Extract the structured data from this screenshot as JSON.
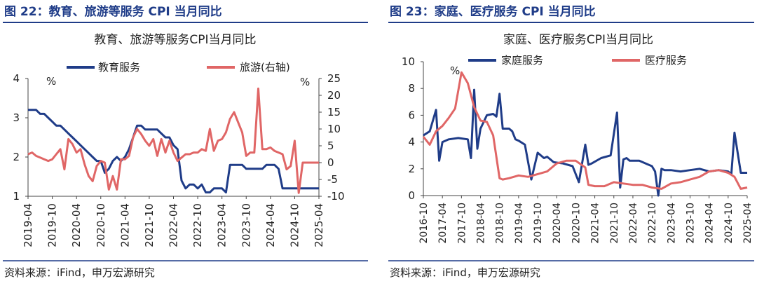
{
  "panels": [
    {
      "figure_title": "图 22：教育、旅游等服务 CPI 当月同比",
      "source": "资料来源：iFind，申万宏源研究"
    },
    {
      "figure_title": "图 23：家庭、医疗服务 CPI 当月同比",
      "source": "资料来源：iFind，申万宏源研究"
    }
  ],
  "colors": {
    "navy": "#1f3c88",
    "salmon": "#e06666",
    "header_rule": "#1f3c88"
  },
  "chart_data": [
    {
      "type": "line",
      "title": "教育、旅游等服务CPI当月同比",
      "left_unit": "%",
      "right_unit": "%",
      "x_start": "2019-04",
      "x_end": "2025-04",
      "xticks": [
        "2019-04",
        "2019-10",
        "2020-04",
        "2020-10",
        "2021-04",
        "2021-10",
        "2022-04",
        "2022-10",
        "2023-04",
        "2023-10",
        "2024-04",
        "2024-10",
        "2025-04"
      ],
      "ylim": [
        1,
        4
      ],
      "yticks": [
        1,
        2,
        3,
        4
      ],
      "y2lim": [
        -10,
        25
      ],
      "y2ticks": [
        -10,
        -5,
        0,
        5,
        10,
        15,
        20,
        25
      ],
      "legend": "top",
      "series": [
        {
          "name": "教育服务",
          "axis": "left",
          "color": "#1f3c88",
          "x": [
            "2019-04",
            "2019-05",
            "2019-06",
            "2019-07",
            "2019-08",
            "2019-09",
            "2019-10",
            "2019-11",
            "2019-12",
            "2020-01",
            "2020-02",
            "2020-03",
            "2020-04",
            "2020-05",
            "2020-06",
            "2020-07",
            "2020-08",
            "2020-09",
            "2020-10",
            "2020-11",
            "2020-12",
            "2021-01",
            "2021-02",
            "2021-03",
            "2021-04",
            "2021-05",
            "2021-06",
            "2021-07",
            "2021-08",
            "2021-09",
            "2021-10",
            "2021-11",
            "2021-12",
            "2022-01",
            "2022-02",
            "2022-03",
            "2022-04",
            "2022-05",
            "2022-06",
            "2022-07",
            "2022-08",
            "2022-09",
            "2022-10",
            "2022-11",
            "2022-12",
            "2023-01",
            "2023-02",
            "2023-03",
            "2023-04",
            "2023-05",
            "2023-06",
            "2023-07",
            "2023-08",
            "2023-09",
            "2023-10",
            "2023-11",
            "2023-12",
            "2024-01",
            "2024-02",
            "2024-03",
            "2024-04",
            "2024-05",
            "2024-06",
            "2024-07",
            "2024-08",
            "2024-09",
            "2024-10",
            "2024-11",
            "2024-12",
            "2025-01",
            "2025-02",
            "2025-03",
            "2025-04"
          ],
          "values": [
            3.2,
            3.2,
            3.2,
            3.1,
            3.1,
            3.0,
            2.9,
            2.8,
            2.8,
            2.7,
            2.6,
            2.5,
            2.4,
            2.3,
            2.2,
            2.1,
            2.0,
            1.9,
            1.9,
            1.6,
            1.7,
            1.9,
            2.0,
            1.9,
            2.0,
            2.2,
            2.5,
            2.8,
            2.8,
            2.7,
            2.7,
            2.7,
            2.7,
            2.6,
            2.5,
            2.5,
            2.3,
            2.2,
            1.4,
            1.2,
            1.3,
            1.3,
            1.2,
            1.3,
            1.1,
            1.1,
            1.2,
            1.2,
            1.2,
            1.1,
            1.8,
            1.8,
            1.8,
            1.8,
            1.7,
            1.7,
            1.7,
            1.7,
            1.7,
            1.8,
            1.8,
            1.8,
            1.7,
            1.2,
            1.2,
            1.2,
            1.2,
            1.2,
            1.2,
            1.2,
            1.2,
            1.2,
            1.2
          ]
        },
        {
          "name": "旅游(右轴)",
          "axis": "right",
          "color": "#e06666",
          "x": [
            "2019-04",
            "2019-05",
            "2019-06",
            "2019-07",
            "2019-08",
            "2019-09",
            "2019-10",
            "2019-11",
            "2019-12",
            "2020-01",
            "2020-02",
            "2020-03",
            "2020-04",
            "2020-05",
            "2020-06",
            "2020-07",
            "2020-08",
            "2020-09",
            "2020-10",
            "2020-11",
            "2020-12",
            "2021-01",
            "2021-02",
            "2021-03",
            "2021-04",
            "2021-05",
            "2021-06",
            "2021-07",
            "2021-08",
            "2021-09",
            "2021-10",
            "2021-11",
            "2021-12",
            "2022-01",
            "2022-02",
            "2022-03",
            "2022-04",
            "2022-05",
            "2022-06",
            "2022-07",
            "2022-08",
            "2022-09",
            "2022-10",
            "2022-11",
            "2022-12",
            "2023-01",
            "2023-02",
            "2023-03",
            "2023-04",
            "2023-05",
            "2023-06",
            "2023-07",
            "2023-08",
            "2023-09",
            "2023-10",
            "2023-11",
            "2023-12",
            "2024-01",
            "2024-02",
            "2024-03",
            "2024-04",
            "2024-05",
            "2024-06",
            "2024-07",
            "2024-08",
            "2024-09",
            "2024-10",
            "2024-11",
            "2024-12",
            "2025-01",
            "2025-02",
            "2025-03",
            "2025-04"
          ],
          "values": [
            2.5,
            3.0,
            2.0,
            1.5,
            1.0,
            0.5,
            1.0,
            2.5,
            4.0,
            -2.0,
            7.0,
            5.5,
            3.0,
            4.0,
            -0.5,
            -4.0,
            -5.5,
            -1.0,
            0.5,
            0.0,
            -8.0,
            -4.0,
            -8.0,
            1.0,
            1.0,
            2.0,
            7.5,
            10.0,
            8.5,
            6.5,
            5.0,
            7.0,
            2.0,
            7.0,
            3.0,
            6.5,
            3.0,
            0.5,
            1.5,
            2.5,
            2.5,
            3.0,
            3.0,
            4.0,
            3.5,
            10.0,
            3.5,
            6.5,
            7.0,
            9.0,
            13.0,
            15.0,
            12.0,
            9.0,
            2.0,
            3.0,
            3.0,
            22.0,
            4.0,
            4.0,
            4.5,
            3.5,
            3.0,
            2.5,
            -2.0,
            -1.0,
            6.5,
            -9.0,
            0.0,
            0.0,
            0.0,
            0.0,
            0.0
          ]
        }
      ]
    },
    {
      "type": "line",
      "title": "家庭、医疗服务CPI当月同比",
      "left_unit": "%",
      "x_start": "2016-10",
      "x_end": "2025-04",
      "xticks": [
        "2016-10",
        "2017-04",
        "2017-10",
        "2018-04",
        "2018-10",
        "2019-04",
        "2019-10",
        "2020-04",
        "2020-10",
        "2021-04",
        "2021-10",
        "2022-04",
        "2022-10",
        "2023-04",
        "2023-10",
        "2024-04",
        "2024-10",
        "2025-04"
      ],
      "ylim": [
        0,
        10
      ],
      "yticks": [
        0,
        2,
        4,
        6,
        8,
        10
      ],
      "legend": "top",
      "series": [
        {
          "name": "家庭服务",
          "axis": "left",
          "color": "#1f3c88",
          "x": [
            "2016-10",
            "2016-12",
            "2017-02",
            "2017-03",
            "2017-04",
            "2017-06",
            "2017-09",
            "2017-12",
            "2018-01",
            "2018-02",
            "2018-03",
            "2018-04",
            "2018-06",
            "2018-08",
            "2018-09",
            "2018-10",
            "2018-11",
            "2019-01",
            "2019-02",
            "2019-03",
            "2019-04",
            "2019-06",
            "2019-08",
            "2019-10",
            "2019-12",
            "2020-01",
            "2020-02",
            "2020-03",
            "2020-06",
            "2020-09",
            "2020-11",
            "2021-01",
            "2021-02",
            "2021-03",
            "2021-06",
            "2021-09",
            "2021-11",
            "2021-12",
            "2022-01",
            "2022-02",
            "2022-03",
            "2022-06",
            "2022-09",
            "2022-10",
            "2022-11",
            "2022-12",
            "2023-01",
            "2023-02",
            "2023-04",
            "2023-07",
            "2023-10",
            "2024-01",
            "2024-04",
            "2024-07",
            "2024-10",
            "2024-11",
            "2024-12",
            "2025-02",
            "2025-04"
          ],
          "values": [
            4.5,
            4.8,
            6.4,
            2.6,
            4.0,
            4.2,
            4.3,
            4.2,
            2.8,
            7.9,
            3.5,
            5.0,
            6.0,
            6.1,
            5.9,
            7.6,
            5.0,
            5.0,
            4.8,
            4.2,
            4.1,
            3.8,
            1.2,
            3.2,
            2.8,
            2.9,
            2.7,
            2.5,
            2.4,
            2.2,
            1.0,
            3.8,
            2.3,
            2.4,
            2.8,
            3.0,
            6.2,
            0.6,
            2.7,
            2.8,
            2.6,
            2.6,
            2.3,
            2.2,
            1.8,
            0.0,
            2.0,
            1.9,
            1.9,
            1.8,
            1.9,
            2.0,
            1.8,
            1.9,
            1.8,
            1.6,
            4.7,
            1.7,
            1.7
          ]
        },
        {
          "name": "医疗服务",
          "axis": "left",
          "color": "#e06666",
          "x": [
            "2016-10",
            "2016-12",
            "2017-02",
            "2017-04",
            "2017-06",
            "2017-08",
            "2017-10",
            "2017-12",
            "2018-02",
            "2018-04",
            "2018-06",
            "2018-08",
            "2018-10",
            "2018-11",
            "2019-01",
            "2019-04",
            "2019-07",
            "2019-10",
            "2020-01",
            "2020-04",
            "2020-07",
            "2020-10",
            "2021-01",
            "2021-02",
            "2021-04",
            "2021-07",
            "2021-10",
            "2022-01",
            "2022-04",
            "2022-07",
            "2022-10",
            "2023-01",
            "2023-04",
            "2023-07",
            "2023-10",
            "2024-01",
            "2024-04",
            "2024-07",
            "2024-10",
            "2024-12",
            "2025-02",
            "2025-04"
          ],
          "values": [
            4.4,
            3.8,
            4.8,
            5.2,
            5.8,
            6.5,
            9.2,
            8.4,
            6.6,
            5.6,
            5.5,
            4.5,
            1.3,
            1.2,
            1.3,
            1.5,
            1.4,
            1.6,
            1.8,
            2.4,
            2.6,
            2.6,
            2.1,
            0.8,
            0.7,
            0.7,
            1.0,
            0.9,
            0.8,
            0.8,
            0.6,
            0.5,
            0.9,
            1.0,
            1.2,
            1.4,
            1.8,
            1.9,
            1.7,
            1.4,
            0.5,
            0.6
          ]
        }
      ]
    }
  ]
}
